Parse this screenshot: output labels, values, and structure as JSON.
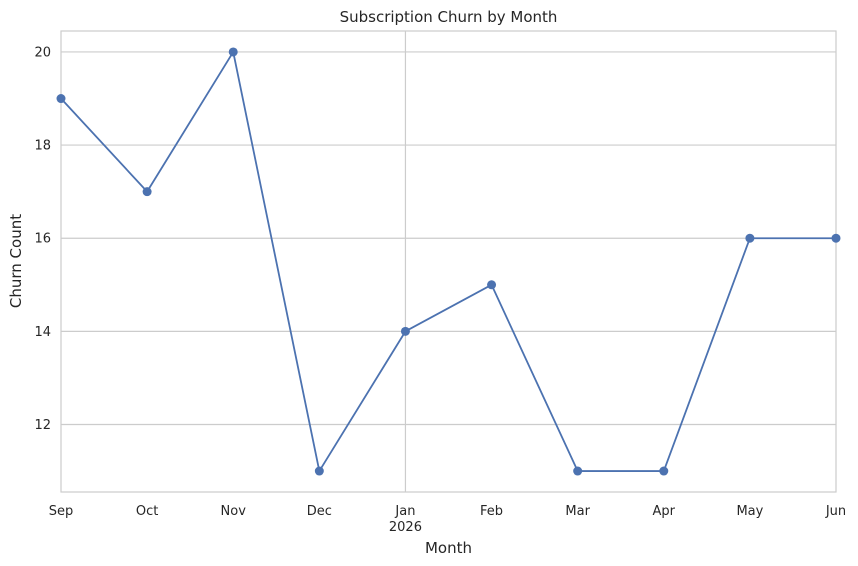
{
  "chart_data": {
    "type": "line",
    "title": "Subscription Churn by Month",
    "xlabel": "Month",
    "ylabel": "Churn Count",
    "x": [
      "Sep",
      "Oct",
      "Nov",
      "Dec",
      "Jan",
      "Feb",
      "Mar",
      "Apr",
      "May",
      "Jun"
    ],
    "x_year_label": {
      "under": "Jan",
      "text": "2026"
    },
    "series": [
      {
        "values": [
          19,
          17,
          20,
          11,
          14,
          15,
          11,
          11,
          16,
          16
        ],
        "color": "#4c72b0",
        "marker": "circle"
      }
    ],
    "ylim": [
      10.55,
      20.45
    ],
    "yticks": [
      12,
      14,
      16,
      18,
      20
    ],
    "grid": true,
    "legend": "none"
  }
}
